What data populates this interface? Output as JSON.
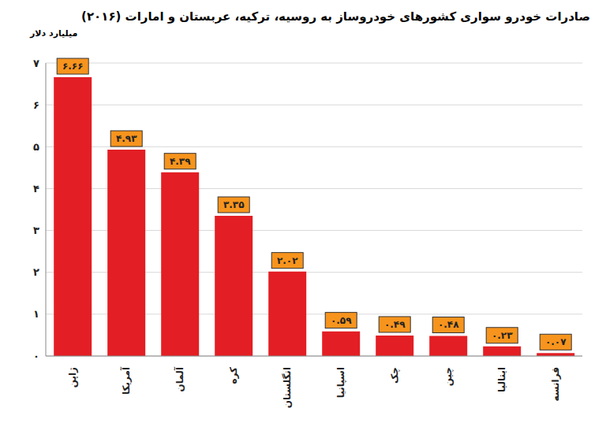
{
  "chart_data": {
    "type": "bar",
    "title": "صادرات خودرو سواری کشورهای خودروساز به روسیه، ترکیه، عربستان و امارات (۲۰۱۶)",
    "y_label": "میلیارد دلار",
    "categories": [
      "ژاپن",
      "آمریکا",
      "آلمان",
      "کره",
      "انگلستان",
      "اسپانیا",
      "چک",
      "چین",
      "ایتالیا",
      "فرانسه"
    ],
    "values": [
      6.66,
      4.93,
      4.39,
      3.35,
      2.02,
      0.59,
      0.49,
      0.48,
      0.23,
      0.07
    ],
    "value_labels": [
      "۶.۶۶",
      "۴.۹۳",
      "۴.۳۹",
      "۳.۳۵",
      "۲.۰۲",
      "۰.۵۹",
      "۰.۴۹",
      "۰.۴۸",
      "۰.۲۳",
      "۰.۰۷"
    ],
    "color": "#e31e24",
    "ylim": [
      0,
      7
    ],
    "yticks": [
      {
        "value": 0,
        "label": "۰"
      },
      {
        "value": 1,
        "label": "۱"
      },
      {
        "value": 2,
        "label": "۲"
      },
      {
        "value": 3,
        "label": "۳"
      },
      {
        "value": 4,
        "label": "۴"
      },
      {
        "value": 5,
        "label": "۵"
      },
      {
        "value": 6,
        "label": "۶"
      },
      {
        "value": 7,
        "label": "۷"
      }
    ],
    "grid": true,
    "data_labels": true
  }
}
